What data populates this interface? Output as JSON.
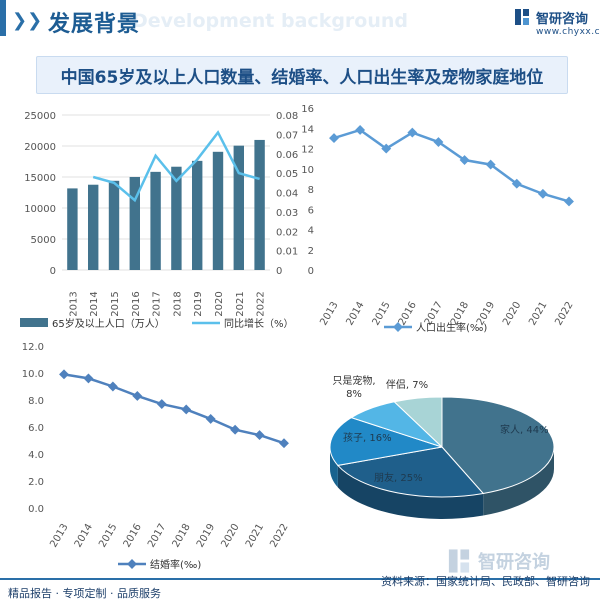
{
  "header": {
    "title": "发展背景",
    "subtitle_en": "Development background",
    "logo_name": "智研咨询",
    "logo_url": "www.chyxx.com"
  },
  "figure_title": "中国65岁及以上人口数量、结婚率、人口出生率及宠物家庭地位",
  "colors": {
    "bar": "#41738d",
    "line_light": "#5bc0eb",
    "line_blue": "#5b9bd5",
    "line_grey": "#4f81bd",
    "accent": "#1d4f86",
    "pie_family": "#41738d",
    "pie_friend": "#1f5f8b",
    "pie_child": "#2189c7",
    "pie_pet": "#53b6e6",
    "pie_partner": "#a8d4d6"
  },
  "chart_data": [
    {
      "type": "bar",
      "categories": [
        "2013",
        "2014",
        "2015",
        "2016",
        "2017",
        "2018",
        "2019",
        "2020",
        "2021",
        "2022"
      ],
      "series": [
        {
          "name": "65岁及以上人口（万人）",
          "type": "bar",
          "axis": "left",
          "values": [
            13161,
            13755,
            14386,
            15003,
            15831,
            16658,
            17603,
            19064,
            20056,
            20978
          ]
        },
        {
          "name": "同比增长（%）",
          "type": "line",
          "axis": "right",
          "values": [
            null,
            0.048,
            0.045,
            0.036,
            0.059,
            0.046,
            0.057,
            0.071,
            0.05,
            0.047
          ]
        }
      ],
      "ylim": [
        0,
        25000
      ],
      "y_ticks": [
        "0",
        "5000",
        "10000",
        "15000",
        "20000",
        "25000"
      ],
      "y2lim": [
        0,
        0.08
      ],
      "y2_ticks": [
        "0",
        "0.01",
        "0.02",
        "0.03",
        "0.04",
        "0.05",
        "0.06",
        "0.07",
        "0.08"
      ],
      "legend": "bottom"
    },
    {
      "type": "line",
      "categories": [
        "2013",
        "2014",
        "2015",
        "2016",
        "2017",
        "2018",
        "2019",
        "2020",
        "2021",
        "2022"
      ],
      "series": [
        {
          "name": "人口出生率(‰)",
          "values": [
            13.03,
            13.83,
            11.99,
            13.57,
            12.64,
            10.86,
            10.41,
            8.52,
            7.52,
            6.77
          ]
        }
      ],
      "ylim": [
        0,
        16
      ],
      "y_ticks": [
        "0",
        "2",
        "4",
        "6",
        "8",
        "10",
        "12",
        "14",
        "16"
      ],
      "legend": "bottom"
    },
    {
      "type": "line",
      "categories": [
        "2013",
        "2014",
        "2015",
        "2016",
        "2017",
        "2018",
        "2019",
        "2020",
        "2021",
        "2022"
      ],
      "series": [
        {
          "name": "结婚率(‰)",
          "values": [
            9.9,
            9.6,
            9.0,
            8.3,
            7.7,
            7.3,
            6.6,
            5.8,
            5.4,
            4.8
          ]
        }
      ],
      "ylim": [
        0,
        12
      ],
      "y_ticks": [
        "0.0",
        "2.0",
        "4.0",
        "6.0",
        "8.0",
        "10.0",
        "12.0"
      ],
      "legend": "bottom"
    },
    {
      "type": "pie",
      "slices": [
        {
          "label": "家人, 44%",
          "value": 44
        },
        {
          "label": "朋友, 25%",
          "value": 25
        },
        {
          "label": "孩子, 16%",
          "value": 16
        },
        {
          "label": "只是宠物,",
          "label2": "8%",
          "value": 8
        },
        {
          "label": "伴侣, 7%",
          "value": 7
        }
      ]
    }
  ],
  "footer": {
    "left": "精品报告 · 专项定制 · 品质服务",
    "right": "资料来源：国家统计局、民政部、智研咨询",
    "watermark": "智研咨询"
  }
}
